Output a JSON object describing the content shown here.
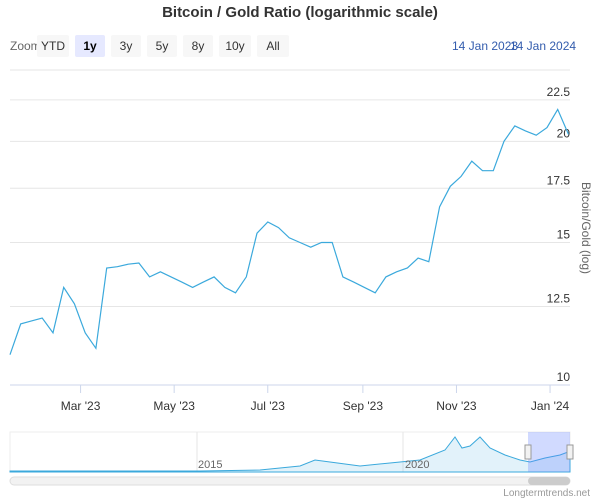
{
  "chart_data": {
    "type": "line",
    "title": "Bitcoin / Gold Ratio (logarithmic scale)",
    "y_label": "Bitcoin/Gold (log)",
    "log_scale": true,
    "grid": true,
    "x": [
      "2023-01-14",
      "2023-01-21",
      "2023-01-28",
      "2023-02-04",
      "2023-02-11",
      "2023-02-18",
      "2023-02-25",
      "2023-03-04",
      "2023-03-11",
      "2023-03-18",
      "2023-03-25",
      "2023-04-01",
      "2023-04-08",
      "2023-04-15",
      "2023-04-22",
      "2023-04-29",
      "2023-05-06",
      "2023-05-13",
      "2023-05-20",
      "2023-05-27",
      "2023-06-03",
      "2023-06-10",
      "2023-06-17",
      "2023-06-24",
      "2023-07-01",
      "2023-07-08",
      "2023-07-15",
      "2023-07-22",
      "2023-07-29",
      "2023-08-05",
      "2023-08-12",
      "2023-08-19",
      "2023-08-26",
      "2023-09-02",
      "2023-09-09",
      "2023-09-16",
      "2023-09-23",
      "2023-09-30",
      "2023-10-07",
      "2023-10-14",
      "2023-10-21",
      "2023-10-28",
      "2023-11-04",
      "2023-11-11",
      "2023-11-18",
      "2023-11-25",
      "2023-12-02",
      "2023-12-09",
      "2023-12-16",
      "2023-12-23",
      "2023-12-30",
      "2024-01-06",
      "2024-01-13"
    ],
    "series": [
      {
        "name": "Bitcoin/Gold",
        "color": "#3ba9dc",
        "values": [
          10.9,
          11.9,
          12.0,
          12.1,
          11.6,
          13.2,
          12.6,
          11.6,
          11.1,
          13.95,
          14.0,
          14.1,
          14.15,
          13.6,
          13.8,
          13.6,
          13.4,
          13.2,
          13.4,
          13.6,
          13.2,
          13.0,
          13.6,
          15.4,
          15.9,
          15.65,
          15.2,
          15.0,
          14.8,
          15.0,
          15.0,
          13.6,
          13.4,
          13.2,
          13.0,
          13.6,
          13.8,
          13.95,
          14.35,
          14.2,
          16.6,
          17.6,
          18.1,
          18.9,
          18.4,
          18.4,
          20.0,
          20.9,
          20.6,
          20.35,
          20.8,
          21.9,
          20.4
        ]
      }
    ],
    "xlim": [
      "2023-01-14",
      "2024-01-14"
    ],
    "xticks": [
      {
        "value": "2023-03-01",
        "label": "Mar '23"
      },
      {
        "value": "2023-05-01",
        "label": "May '23"
      },
      {
        "value": "2023-07-01",
        "label": "Jul '23"
      },
      {
        "value": "2023-09-01",
        "label": "Sep '23"
      },
      {
        "value": "2023-11-01",
        "label": "Nov '23"
      },
      {
        "value": "2024-01-01",
        "label": "Jan '24"
      }
    ],
    "ylim": [
      10,
      24.5
    ],
    "yticks": [
      10,
      12.5,
      15,
      17.5,
      20,
      22.5
    ]
  },
  "range_selector": {
    "zoom_label": "Zoom",
    "buttons": [
      "YTD",
      "1y",
      "3y",
      "5y",
      "8y",
      "10y",
      "All"
    ],
    "selected": "1y",
    "from": "14 Jan 2023",
    "to": "14 Jan 2024"
  },
  "navigator": {
    "labels": [
      "2015",
      "2020"
    ]
  },
  "credit": "Longtermtrends.net"
}
